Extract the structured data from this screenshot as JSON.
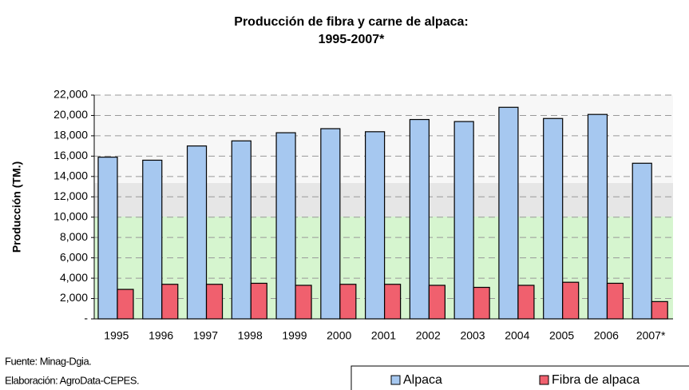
{
  "chart_data": {
    "type": "bar",
    "title": "Producción de fibra y carne de alpaca:",
    "subtitle": "1995-2007*",
    "y_label": "Producción (TM.)",
    "categories": [
      "1995",
      "1996",
      "1997",
      "1998",
      "1999",
      "2000",
      "2001",
      "2002",
      "2003",
      "2004",
      "2005",
      "2006",
      "2007*"
    ],
    "series": [
      {
        "name": "Alpaca",
        "color": "#a6c8f0",
        "values": [
          15900,
          15600,
          17000,
          17500,
          18300,
          18700,
          18400,
          19600,
          19400,
          20800,
          19700,
          20100,
          15300
        ]
      },
      {
        "name": "Fibra de alpaca",
        "color": "#f0606e",
        "values": [
          2900,
          3400,
          3400,
          3500,
          3300,
          3400,
          3400,
          3300,
          3100,
          3300,
          3600,
          3500,
          1700
        ]
      }
    ],
    "ylim": [
      0,
      22000
    ],
    "yticks": [
      {
        "value": 0,
        "label": "-"
      },
      {
        "value": 2000,
        "label": "2,000"
      },
      {
        "value": 4000,
        "label": "4,000"
      },
      {
        "value": 6000,
        "label": "6,000"
      },
      {
        "value": 8000,
        "label": "8,000"
      },
      {
        "value": 10000,
        "label": "10,000"
      },
      {
        "value": 12000,
        "label": "12,000"
      },
      {
        "value": 14000,
        "label": "14,000"
      },
      {
        "value": 16000,
        "label": "16,000"
      },
      {
        "value": 18000,
        "label": "18,000"
      },
      {
        "value": 20000,
        "label": "20,000"
      },
      {
        "value": 22000,
        "label": "22,000"
      }
    ],
    "grid": true,
    "notes": [
      "Fuente: Minag-Dgia.",
      "Elaboración: AgroData-CEPES."
    ]
  }
}
